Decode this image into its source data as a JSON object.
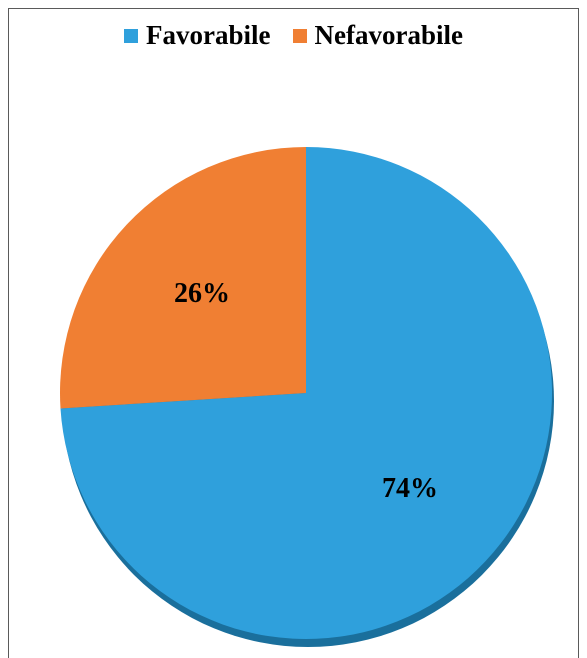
{
  "chart_data": {
    "type": "pie",
    "title": "",
    "categories": [
      "Favorabile",
      "Nefavorabile"
    ],
    "values": [
      74,
      26
    ],
    "data_labels": [
      "74%",
      "26%"
    ],
    "colors": [
      "#2fa0dc",
      "#f07f33"
    ],
    "legend": {
      "placement": "top",
      "entries": [
        "Favorabile",
        "Nefavorabile"
      ]
    }
  }
}
